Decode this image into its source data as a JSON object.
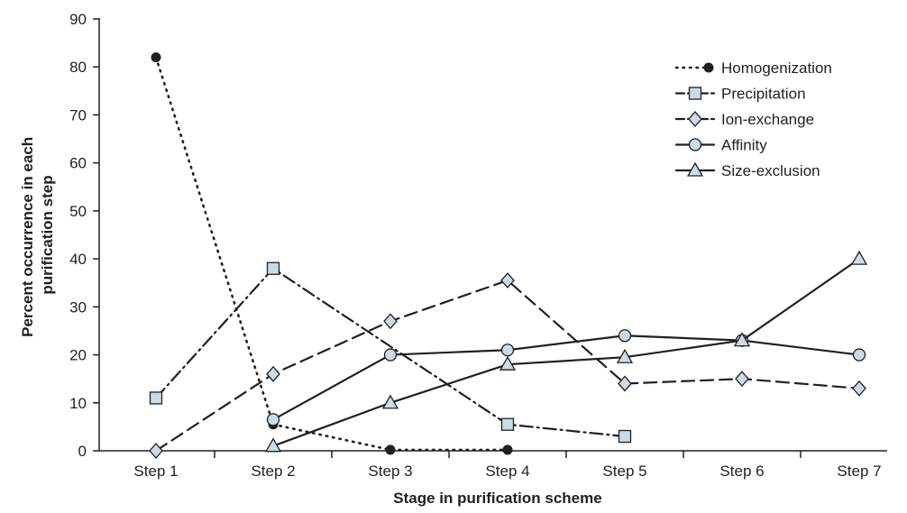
{
  "chart_data": {
    "type": "line",
    "title": "",
    "xlabel": "Stage in purification scheme",
    "ylabel": [
      "Percent occurrence in each",
      "purification step"
    ],
    "categories": [
      "Step 1",
      "Step 2",
      "Step 3",
      "Step 4",
      "Step 5",
      "Step 6",
      "Step 7"
    ],
    "ylim": [
      0,
      90
    ],
    "yticks": [
      0,
      10,
      20,
      30,
      40,
      50,
      60,
      70,
      80,
      90
    ],
    "grid": false,
    "legend_position": "top-right",
    "series": [
      {
        "name": "Homogenization",
        "marker": "dot",
        "dash": "dotted",
        "values": [
          82,
          5.5,
          0.2,
          0.2,
          null,
          null,
          null
        ]
      },
      {
        "name": "Precipitation",
        "marker": "square",
        "dash": "dash-dot",
        "values": [
          11,
          38,
          null,
          5.5,
          3,
          null,
          null
        ]
      },
      {
        "name": "Ion-exchange",
        "marker": "diamond",
        "dash": "dashed",
        "values": [
          0,
          16,
          27,
          35.5,
          14,
          15,
          13
        ]
      },
      {
        "name": "Affinity",
        "marker": "circle",
        "dash": "solid",
        "values": [
          null,
          6.5,
          20,
          21,
          24,
          23,
          20
        ]
      },
      {
        "name": "Size-exclusion",
        "marker": "triangle",
        "dash": "solid",
        "values": [
          null,
          1,
          10,
          18,
          19.5,
          23,
          40
        ]
      }
    ],
    "marker_fill": "#c8dce8",
    "ink": "#231f20"
  }
}
